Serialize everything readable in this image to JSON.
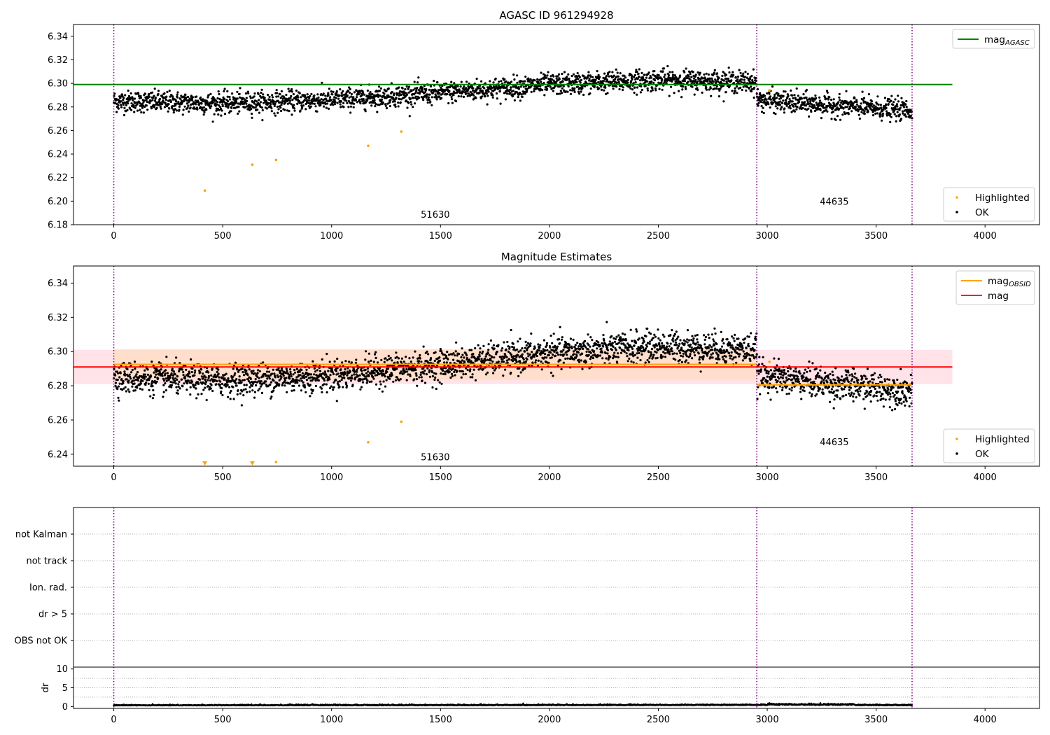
{
  "colors": {
    "ok": "#000000",
    "highlighted": "#ffa500",
    "mag_agasc": "#008000",
    "mag_obsid": "#ffa500",
    "mag": "#ff0000",
    "obs_boundary": "#800080",
    "mag_band": "#ffc0cb",
    "obsid_band": "#ffdab9"
  },
  "chart_data": [
    {
      "type": "scatter",
      "title": "AGASC ID 961294928",
      "xlim": [
        -185,
        4250
      ],
      "ylim": [
        6.18,
        6.35
      ],
      "xticks": [
        "0",
        "500",
        "1000",
        "1500",
        "2000",
        "2500",
        "3000",
        "3500",
        "4000"
      ],
      "yticks": [
        "6.18",
        "6.20",
        "6.22",
        "6.24",
        "6.26",
        "6.28",
        "6.30",
        "6.32",
        "6.34"
      ],
      "obs_boundaries": [
        0,
        2952,
        3665
      ],
      "obsid_labels": [
        {
          "text": "51630",
          "x": 1476,
          "y": 6.186
        },
        {
          "text": "44635",
          "x": 3308,
          "y": 6.197
        }
      ],
      "lines": [
        {
          "name": "mag_AGASC",
          "y": 6.299,
          "x": [
            -185,
            3850
          ]
        }
      ],
      "highlighted_points": {
        "x": [
          418,
          636,
          745,
          1168,
          1320,
          3010
        ],
        "y": [
          6.209,
          6.231,
          6.235,
          6.247,
          6.259,
          6.294
        ]
      },
      "ok_trend": {
        "x": [
          0,
          500,
          1000,
          1500,
          2000,
          2500,
          2952,
          2953,
          3300,
          3665
        ],
        "y": [
          6.285,
          6.283,
          6.286,
          6.292,
          6.299,
          6.303,
          6.301,
          6.286,
          6.281,
          6.277
        ]
      },
      "ok_scatter_sigma": 0.0045,
      "legends": [
        {
          "position": "top-right",
          "entries": [
            {
              "label": "mag",
              "sub": "AGASC",
              "kind": "line",
              "color": "#008000"
            }
          ]
        },
        {
          "position": "bottom-right",
          "entries": [
            {
              "label": "Highlighted",
              "kind": "dot",
              "color": "#ffa500"
            },
            {
              "label": "OK",
              "kind": "dot",
              "color": "#000000"
            }
          ]
        }
      ]
    },
    {
      "type": "scatter",
      "title": "Magnitude Estimates",
      "xlim": [
        -185,
        4250
      ],
      "ylim": [
        6.233,
        6.35
      ],
      "xticks": [
        "0",
        "500",
        "1000",
        "1500",
        "2000",
        "2500",
        "3000",
        "3500",
        "4000"
      ],
      "yticks": [
        "6.24",
        "6.26",
        "6.28",
        "6.30",
        "6.32",
        "6.34"
      ],
      "obs_boundaries": [
        0,
        2952,
        3665
      ],
      "obsid_labels": [
        {
          "text": "51630",
          "x": 1476,
          "y": 6.2365
        },
        {
          "text": "44635",
          "x": 3308,
          "y": 6.2453
        }
      ],
      "lines": [
        {
          "name": "mag",
          "y": 6.291,
          "x": [
            -185,
            3850
          ]
        },
        {
          "name": "mag_OBSID_1",
          "y": 6.2925,
          "x": [
            0,
            2952
          ]
        },
        {
          "name": "mag_OBSID_2",
          "y": 6.2805,
          "x": [
            2952,
            3665
          ]
        }
      ],
      "bands": [
        {
          "name": "mag",
          "x": [
            -185,
            3850
          ],
          "y": [
            6.281,
            6.301
          ]
        },
        {
          "name": "mag_OBSID_1",
          "x": [
            0,
            2952
          ],
          "y": [
            6.2835,
            6.3015
          ]
        },
        {
          "name": "mag_OBSID_2",
          "x": [
            2952,
            3665
          ],
          "y": [
            6.279,
            6.282
          ]
        }
      ],
      "highlighted_points": {
        "x": [
          1168,
          1320,
          745,
          3010
        ],
        "y": [
          6.247,
          6.259,
          6.2355,
          6.294
        ]
      },
      "below_range_markers": {
        "x": [
          418,
          636
        ]
      },
      "ok_trend": {
        "x": [
          0,
          500,
          1000,
          1500,
          2000,
          2500,
          2952,
          2953,
          3300,
          3665
        ],
        "y": [
          6.285,
          6.283,
          6.286,
          6.292,
          6.299,
          6.303,
          6.301,
          6.286,
          6.281,
          6.277
        ]
      },
      "ok_scatter_sigma": 0.0045,
      "legends": [
        {
          "position": "top-right",
          "entries": [
            {
              "label": "mag",
              "sub": "OBSID",
              "kind": "line",
              "color": "#ffa500"
            },
            {
              "label": "mag",
              "kind": "line",
              "color": "#ff0000"
            }
          ]
        },
        {
          "position": "bottom-right",
          "entries": [
            {
              "label": "Highlighted",
              "kind": "dot",
              "color": "#ffa500"
            },
            {
              "label": "OK",
              "kind": "dot",
              "color": "#000000"
            }
          ]
        }
      ]
    },
    {
      "type": "scatter",
      "title": "",
      "xlim": [
        -185,
        4250
      ],
      "categories": [
        "OBS not OK",
        "dr > 5",
        "Ion. rad.",
        "not track",
        "not Kalman"
      ],
      "obs_boundaries": [
        0,
        2952,
        3665
      ],
      "flagged_points": []
    },
    {
      "type": "scatter",
      "title": "",
      "xlim": [
        -185,
        4250
      ],
      "ylim": [
        -0.5,
        10.5
      ],
      "ylabel": "dr",
      "xticks": [
        "0",
        "500",
        "1000",
        "1500",
        "2000",
        "2500",
        "3000",
        "3500",
        "4000"
      ],
      "yticks": [
        "0",
        "5",
        "10"
      ],
      "obs_boundaries": [
        0,
        2952,
        3665
      ],
      "ok_trend": {
        "x": [
          0,
          3000,
          3665
        ],
        "y": [
          0.25,
          0.35,
          0.3
        ]
      },
      "ok_scatter_sigma": 0.12
    }
  ]
}
